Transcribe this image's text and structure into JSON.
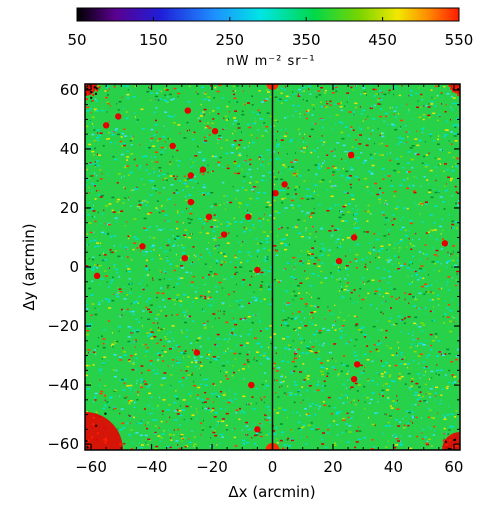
{
  "chart_data": {
    "type": "heatmap",
    "xlabel": "Δx (arcmin)",
    "ylabel": "Δy (arcmin)",
    "xlim": [
      -62,
      62
    ],
    "ylim": [
      -62,
      62
    ],
    "x_ticks": [
      -60,
      -40,
      -20,
      0,
      20,
      40,
      60
    ],
    "y_ticks": [
      -60,
      -40,
      -20,
      0,
      20,
      40,
      60
    ],
    "x_tick_labels": [
      "−60",
      "−40",
      "−20",
      "0",
      "20",
      "40",
      "60"
    ],
    "y_tick_labels": [
      "−60",
      "−40",
      "−20",
      "0",
      "20",
      "40",
      "60"
    ],
    "colorbar": {
      "min": 50,
      "max": 550,
      "ticks": [
        50,
        150,
        250,
        350,
        450,
        550
      ],
      "tick_labels": [
        "50",
        "150",
        "250",
        "350",
        "450",
        "550"
      ],
      "unit": "nW m⁻² sr⁻¹",
      "colormap": "rainbow (black → purple → blue → cyan → green → yellow → red)"
    },
    "background_level": 350,
    "map_split_x": 0,
    "bright_sources": [
      {
        "x": -51,
        "y": 51,
        "value": 550
      },
      {
        "x": -55,
        "y": 48,
        "value": 550
      },
      {
        "x": -28,
        "y": 53,
        "value": 550
      },
      {
        "x": -33,
        "y": 41,
        "value": 550
      },
      {
        "x": -19,
        "y": 46,
        "value": 550
      },
      {
        "x": -27,
        "y": 31,
        "value": 550
      },
      {
        "x": -23,
        "y": 33,
        "value": 550
      },
      {
        "x": -16,
        "y": 11,
        "value": 550
      },
      {
        "x": -27,
        "y": 22,
        "value": 550
      },
      {
        "x": -21,
        "y": 17,
        "value": 550
      },
      {
        "x": -43,
        "y": 7,
        "value": 550
      },
      {
        "x": -8,
        "y": 17,
        "value": 550
      },
      {
        "x": -29,
        "y": 3,
        "value": 550
      },
      {
        "x": -58,
        "y": -3,
        "value": 550
      },
      {
        "x": -5,
        "y": -1,
        "value": 550
      },
      {
        "x": -25,
        "y": -29,
        "value": 550
      },
      {
        "x": -7,
        "y": -40,
        "value": 550
      },
      {
        "x": -5,
        "y": -55,
        "value": 550
      },
      {
        "x": 4,
        "y": 28,
        "value": 550
      },
      {
        "x": 26,
        "y": 38,
        "value": 550
      },
      {
        "x": 27,
        "y": -38,
        "value": 550
      },
      {
        "x": 28,
        "y": -33,
        "value": 550
      },
      {
        "x": 27,
        "y": 10,
        "value": 550
      },
      {
        "x": 1,
        "y": 25,
        "value": 550
      },
      {
        "x": 57,
        "y": 8,
        "value": 550
      },
      {
        "x": 22,
        "y": 2,
        "value": 550
      }
    ],
    "bright_regions": [
      {
        "description": "saturated corner",
        "corner": "bottom-left",
        "value": 550
      },
      {
        "description": "saturated corner",
        "corner": "bottom-right",
        "value": 550
      },
      {
        "description": "saturated corner",
        "corner": "top-left",
        "value": 550
      },
      {
        "description": "saturated corner",
        "corner": "top-right",
        "value": 550
      }
    ]
  }
}
